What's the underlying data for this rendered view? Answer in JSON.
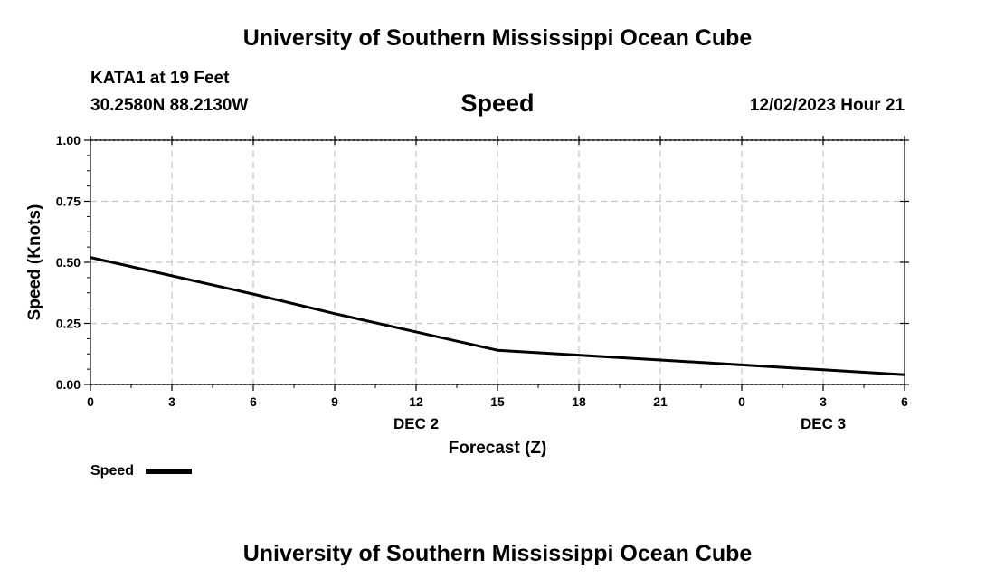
{
  "header": {
    "title": "University of Southern Mississippi Ocean Cube",
    "station": "KATA1 at 19 Feet",
    "coords": "30.2580N  88.2130W",
    "chart_name": "Speed",
    "datetime": "12/02/2023 Hour 21"
  },
  "footer": {
    "title": "University of Southern Mississippi Ocean Cube"
  },
  "chart_data": {
    "type": "line",
    "xlabel": "Forecast (Z)",
    "ylabel": "Speed (Knots)",
    "x_tick_labels": [
      "0",
      "3",
      "6",
      "9",
      "12",
      "15",
      "18",
      "21",
      "0",
      "3",
      "6"
    ],
    "date_labels": [
      {
        "at_tick": 4,
        "label": "DEC 2"
      },
      {
        "at_tick": 9,
        "label": "DEC 3"
      }
    ],
    "y_ticks": [
      "0.00",
      "0.25",
      "0.50",
      "0.75",
      "1.00"
    ],
    "ylim": [
      0,
      1
    ],
    "grid": true,
    "legend_position": "bottom-left",
    "series": [
      {
        "name": "Speed",
        "color": "#000000",
        "x": [
          "12/02 00",
          "12/02 03",
          "12/02 06",
          "12/02 09",
          "12/02 12",
          "12/02 15",
          "12/02 18",
          "12/02 21",
          "12/03 00",
          "12/03 03",
          "12/03 06"
        ],
        "values": [
          0.52,
          0.445,
          0.37,
          0.29,
          0.215,
          0.14,
          0.12,
          0.1,
          0.08,
          0.06,
          0.04
        ]
      }
    ]
  }
}
